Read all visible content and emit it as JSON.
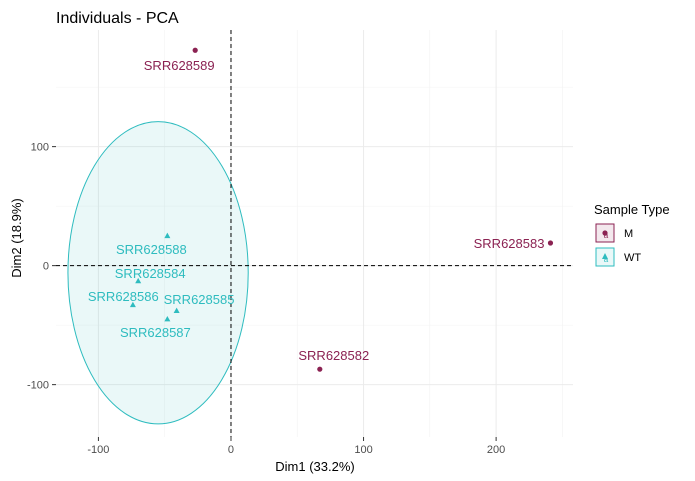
{
  "chart_data": {
    "type": "scatter",
    "title": "Individuals - PCA",
    "xlabel": "Dim1 (33.2%)",
    "ylabel": "Dim2 (18.9%)",
    "xlim": [
      -132,
      258
    ],
    "ylim": [
      -144,
      198
    ],
    "x_ticks": [
      -100,
      0,
      100,
      200
    ],
    "y_ticks": [
      -100,
      0,
      100
    ],
    "grid": true,
    "legend_title": "Sample Type",
    "legend_position": "right",
    "colors": {
      "M": "#8b2252",
      "WT": "#2ebcbf"
    },
    "series": [
      {
        "name": "M",
        "marker": "circle",
        "points": [
          {
            "label": "SRR628589",
            "x": -27,
            "y": 181
          },
          {
            "label": "SRR628583",
            "x": 241,
            "y": 19
          },
          {
            "label": "SRR628582",
            "x": 67,
            "y": -87
          }
        ]
      },
      {
        "name": "WT",
        "marker": "triangle",
        "points": [
          {
            "label": "SRR628588",
            "x": -48,
            "y": 25
          },
          {
            "label": "SRR628584",
            "x": -70,
            "y": -13
          },
          {
            "label": "SRR628586",
            "x": -74,
            "y": -33
          },
          {
            "label": "SRR628585",
            "x": -41,
            "y": -38
          },
          {
            "label": "SRR628587",
            "x": -48,
            "y": -45
          }
        ],
        "ellipse": {
          "cx": -55,
          "cy": -6,
          "rx": 68,
          "ry": 127
        }
      }
    ],
    "reference_lines": {
      "x": 0,
      "y": 0,
      "style": "dashed"
    }
  }
}
